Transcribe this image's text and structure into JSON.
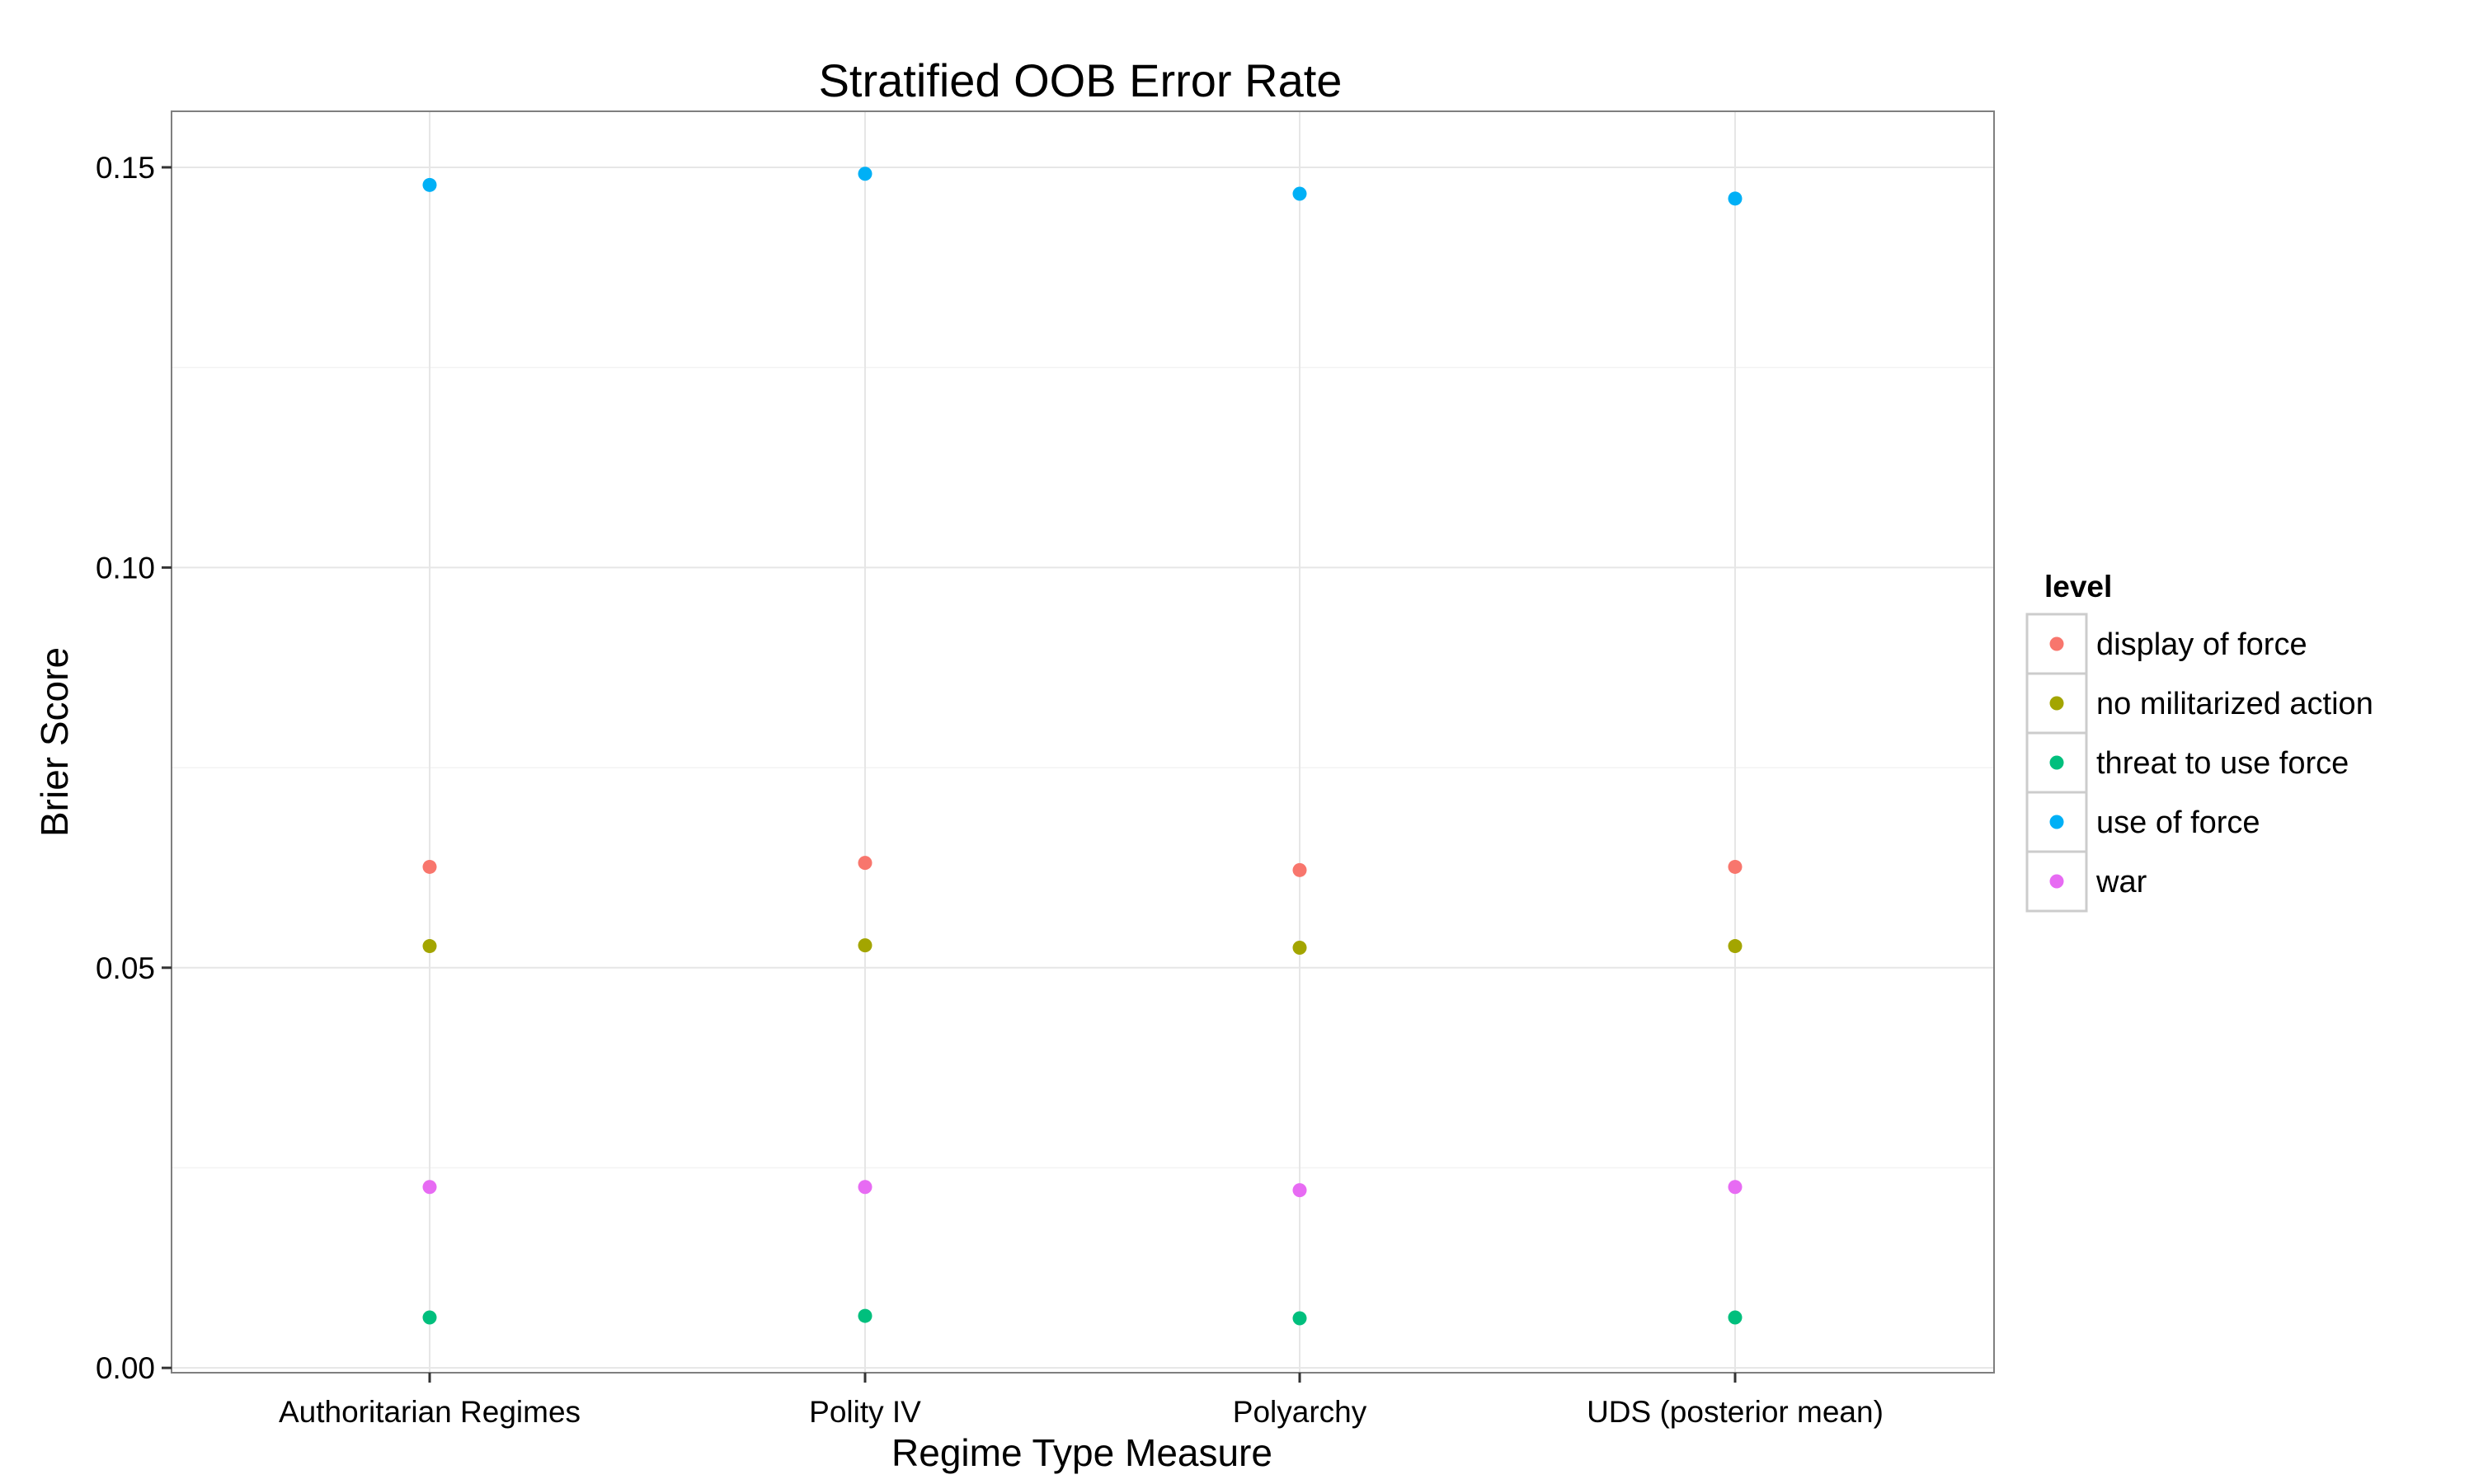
{
  "chart_data": {
    "type": "scatter",
    "title": "Stratified OOB Error Rate",
    "xlabel": "Regime Type Measure",
    "ylabel": "Brier Score",
    "categories": [
      "Authoritarian Regimes",
      "Polity IV",
      "Polyarchy",
      "UDS (posterior mean)"
    ],
    "ylim": [
      -0.0006,
      0.157
    ],
    "yticks": [
      0.0,
      0.05,
      0.1,
      0.15
    ],
    "ytick_labels": [
      "0.00",
      "0.05",
      "0.10",
      "0.15"
    ],
    "grid": true,
    "legend": {
      "title": "level",
      "position": "right"
    },
    "series": [
      {
        "name": "display of force",
        "color": "#F8766D",
        "values": [
          0.0626,
          0.0631,
          0.0622,
          0.0626
        ]
      },
      {
        "name": "no militarized action",
        "color": "#A3A500",
        "values": [
          0.0527,
          0.0528,
          0.0525,
          0.0527
        ]
      },
      {
        "name": "threat to use force",
        "color": "#00BF7D",
        "values": [
          0.0063,
          0.0065,
          0.0062,
          0.0063
        ]
      },
      {
        "name": "use of force",
        "color": "#00B0F6",
        "values": [
          0.1478,
          0.1492,
          0.1467,
          0.1461
        ]
      },
      {
        "name": "war",
        "color": "#E76BF3",
        "values": [
          0.0226,
          0.0226,
          0.0222,
          0.0226
        ]
      }
    ]
  }
}
